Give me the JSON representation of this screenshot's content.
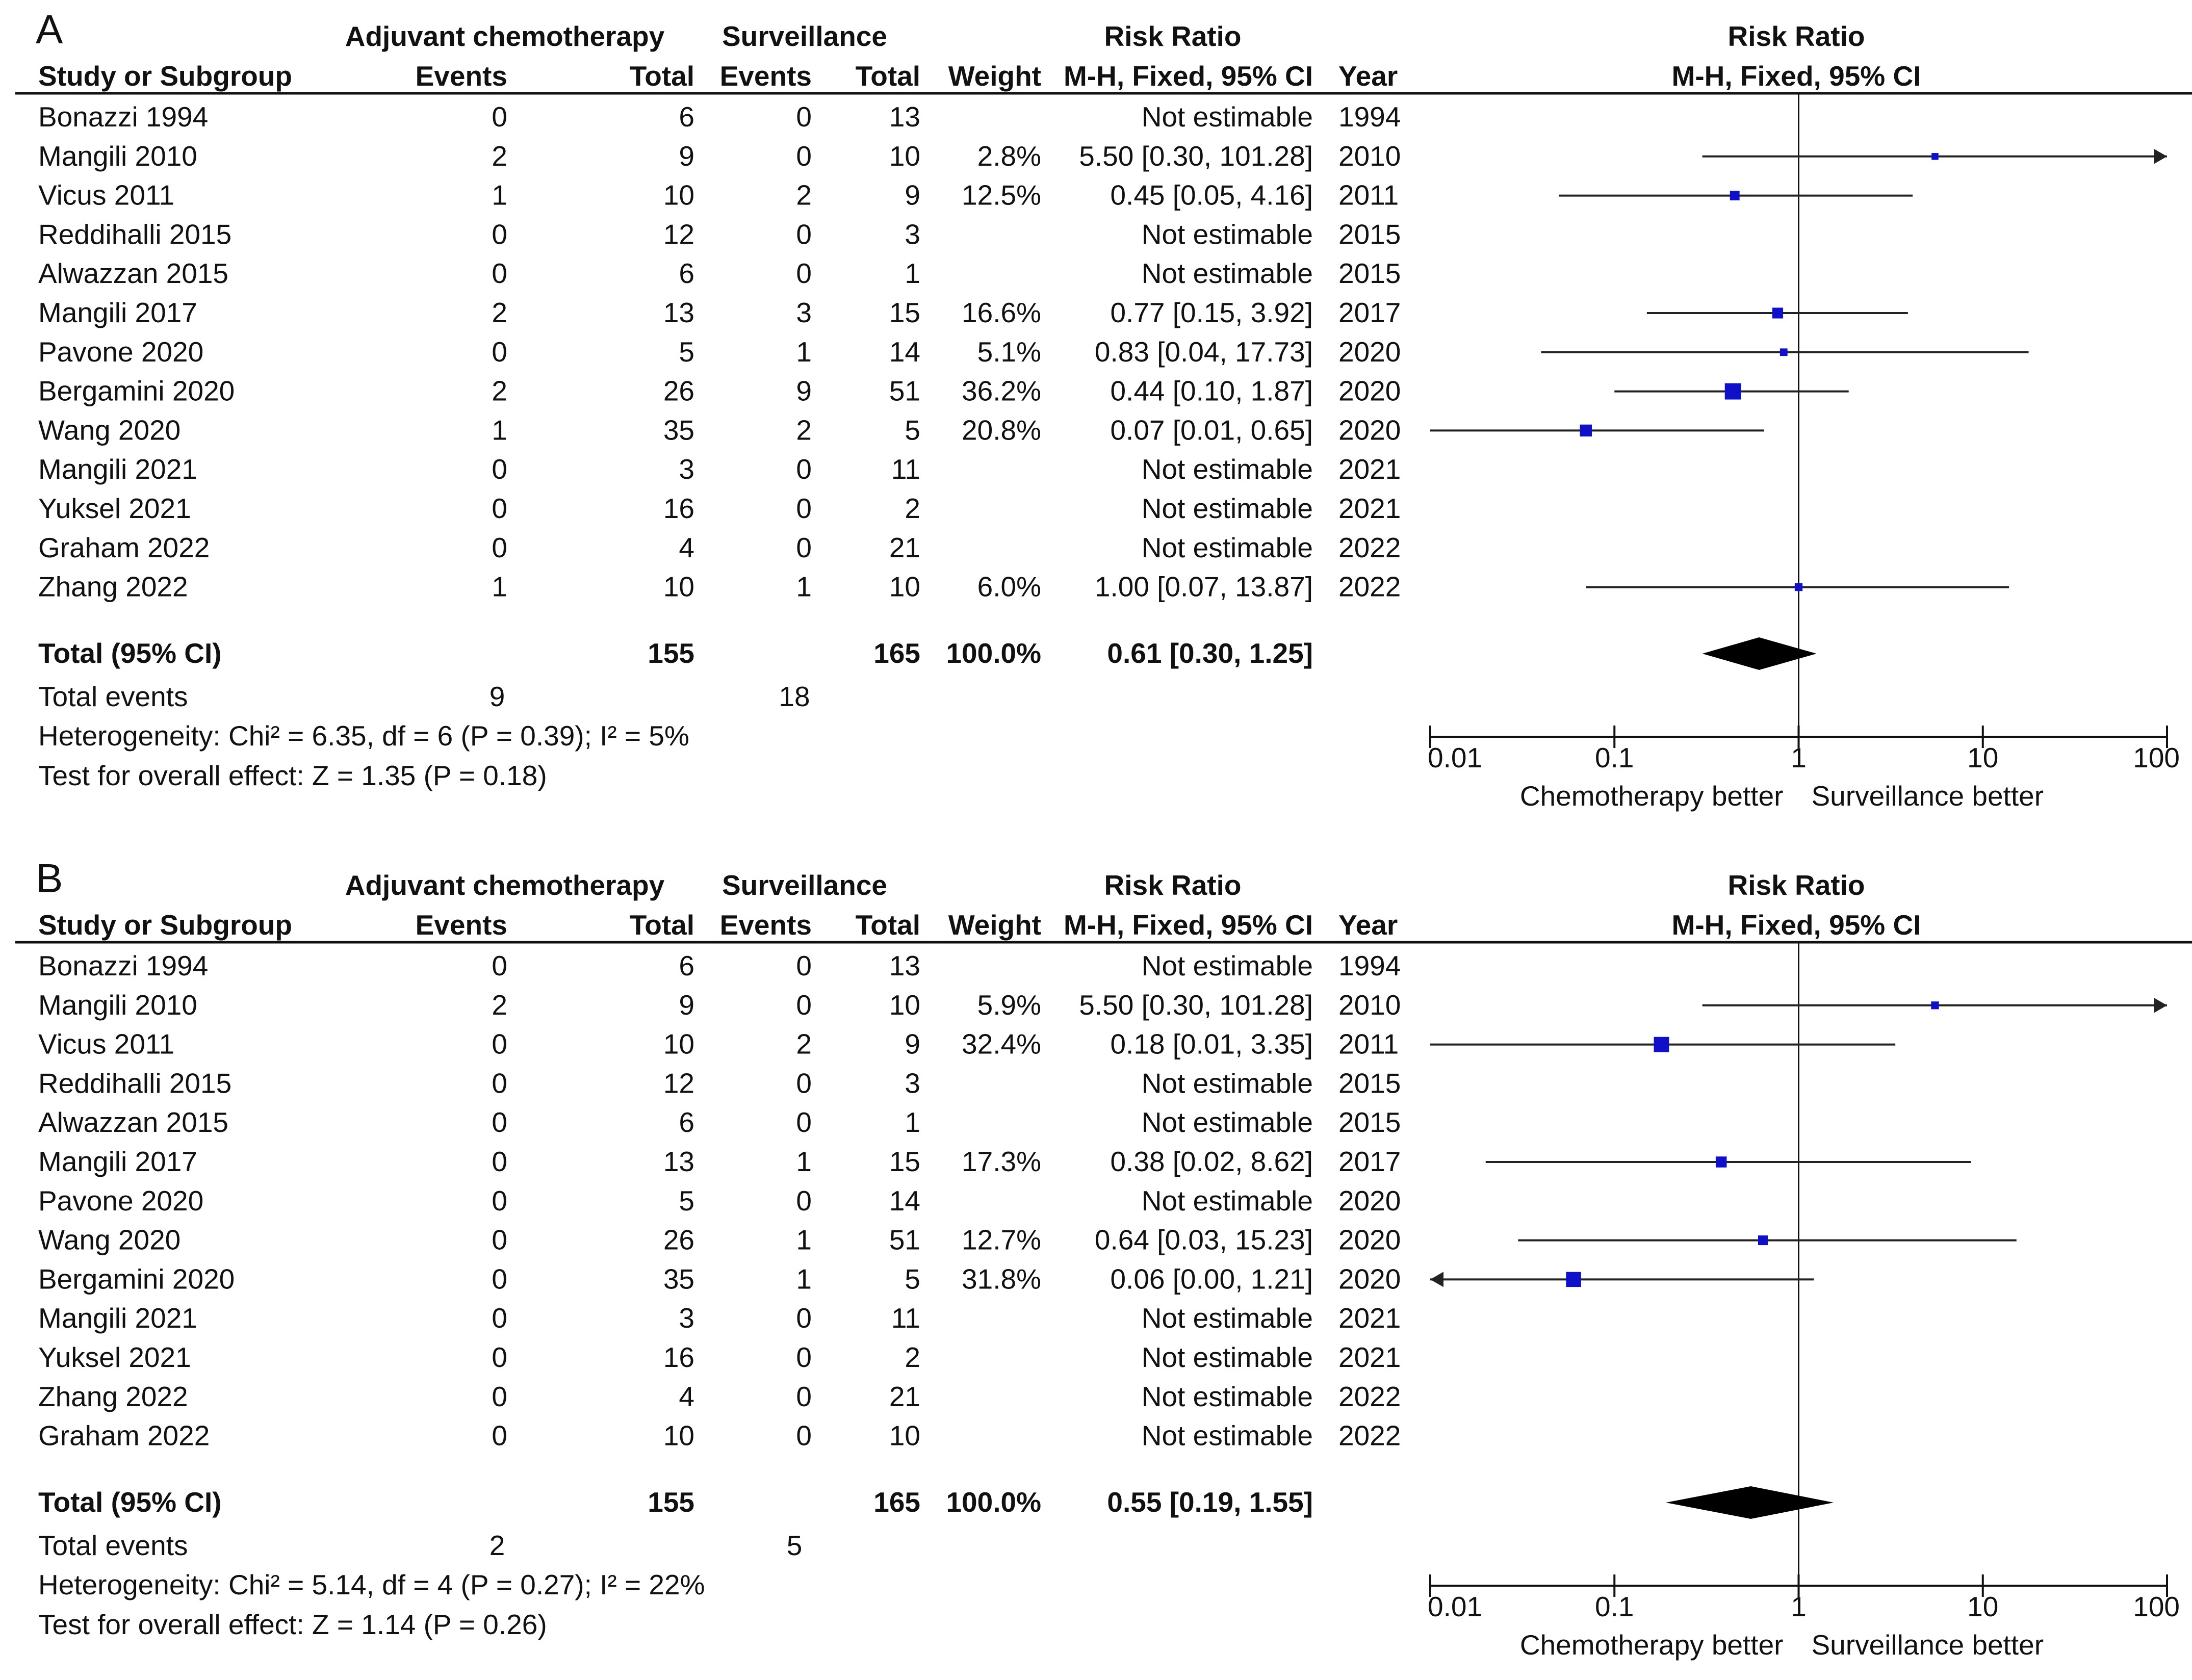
{
  "header_labels": {
    "experimental": "Adjuvant chemotherapy",
    "control": "Surveillance",
    "effect": "Risk Ratio",
    "study": "Study or Subgroup",
    "events": "Events",
    "total": "Total",
    "weight": "Weight",
    "method": "M-H, Fixed, 95% CI",
    "year": "Year",
    "plot_title": "Risk Ratio",
    "plot_method": "M-H, Fixed, 95% CI"
  },
  "colors": {
    "marker": "#1010c8",
    "line": "#222222",
    "diamond": "#000000"
  },
  "chart_data": [
    {
      "type": "forest",
      "panel_label": "A",
      "x_scale": "log",
      "xlim": [
        0.01,
        100
      ],
      "xticks": [
        "0.01",
        "0.1",
        "1",
        "10",
        "100"
      ],
      "xtick_values": [
        0.01,
        0.1,
        1,
        10,
        100
      ],
      "favours_left": "Chemotherapy better",
      "favours_right": "Surveillance better",
      "studies": [
        {
          "name": "Bonazzi 1994",
          "e_events": "0",
          "e_total": "6",
          "c_events": "0",
          "c_total": "13",
          "weight": "",
          "ci_text": "Not estimable",
          "year": "1994"
        },
        {
          "name": "Mangili 2010",
          "e_events": "2",
          "e_total": "9",
          "c_events": "0",
          "c_total": "10",
          "weight": "2.8%",
          "ci_text": "5.50 [0.30, 101.28]",
          "year": "2010",
          "rr": 5.5,
          "low": 0.3,
          "high": 101.28
        },
        {
          "name": "Vicus 2011",
          "e_events": "1",
          "e_total": "10",
          "c_events": "2",
          "c_total": "9",
          "weight": "12.5%",
          "ci_text": "0.45 [0.05, 4.16]",
          "year": "2011",
          "rr": 0.45,
          "low": 0.05,
          "high": 4.16
        },
        {
          "name": "Reddihalli 2015",
          "e_events": "0",
          "e_total": "12",
          "c_events": "0",
          "c_total": "3",
          "weight": "",
          "ci_text": "Not estimable",
          "year": "2015"
        },
        {
          "name": "Alwazzan 2015",
          "e_events": "0",
          "e_total": "6",
          "c_events": "0",
          "c_total": "1",
          "weight": "",
          "ci_text": "Not estimable",
          "year": "2015"
        },
        {
          "name": "Mangili 2017",
          "e_events": "2",
          "e_total": "13",
          "c_events": "3",
          "c_total": "15",
          "weight": "16.6%",
          "ci_text": "0.77 [0.15, 3.92]",
          "year": "2017",
          "rr": 0.77,
          "low": 0.15,
          "high": 3.92
        },
        {
          "name": "Pavone 2020",
          "e_events": "0",
          "e_total": "5",
          "c_events": "1",
          "c_total": "14",
          "weight": "5.1%",
          "ci_text": "0.83 [0.04, 17.73]",
          "year": "2020",
          "rr": 0.83,
          "low": 0.04,
          "high": 17.73
        },
        {
          "name": "Bergamini 2020",
          "e_events": "2",
          "e_total": "26",
          "c_events": "9",
          "c_total": "51",
          "weight": "36.2%",
          "ci_text": "0.44 [0.10, 1.87]",
          "year": "2020",
          "rr": 0.44,
          "low": 0.1,
          "high": 1.87
        },
        {
          "name": "Wang 2020",
          "e_events": "1",
          "e_total": "35",
          "c_events": "2",
          "c_total": "5",
          "weight": "20.8%",
          "ci_text": "0.07 [0.01, 0.65]",
          "year": "2020",
          "rr": 0.07,
          "low": 0.01,
          "high": 0.65
        },
        {
          "name": "Mangili 2021",
          "e_events": "0",
          "e_total": "3",
          "c_events": "0",
          "c_total": "11",
          "weight": "",
          "ci_text": "Not estimable",
          "year": "2021"
        },
        {
          "name": "Yuksel 2021",
          "e_events": "0",
          "e_total": "16",
          "c_events": "0",
          "c_total": "2",
          "weight": "",
          "ci_text": "Not estimable",
          "year": "2021"
        },
        {
          "name": "Graham 2022",
          "e_events": "0",
          "e_total": "4",
          "c_events": "0",
          "c_total": "21",
          "weight": "",
          "ci_text": "Not estimable",
          "year": "2022"
        },
        {
          "name": "Zhang 2022",
          "e_events": "1",
          "e_total": "10",
          "c_events": "1",
          "c_total": "10",
          "weight": "6.0%",
          "ci_text": "1.00 [0.07, 13.87]",
          "year": "2022",
          "rr": 1.0,
          "low": 0.07,
          "high": 13.87
        }
      ],
      "total": {
        "label": "Total (95% CI)",
        "e_total": "155",
        "c_total": "165",
        "weight": "100.0%",
        "ci_text": "0.61 [0.30, 1.25]",
        "rr": 0.61,
        "low": 0.3,
        "high": 1.25
      },
      "total_events": {
        "label": "Total events",
        "e": "9",
        "c": "18"
      },
      "heterogeneity": "Heterogeneity: Chi² = 6.35, df = 6 (P = 0.39); I² = 5%",
      "overall_effect": "Test for overall effect: Z = 1.35 (P = 0.18)"
    },
    {
      "type": "forest",
      "panel_label": "B",
      "x_scale": "log",
      "xlim": [
        0.01,
        100
      ],
      "xticks": [
        "0.01",
        "0.1",
        "1",
        "10",
        "100"
      ],
      "xtick_values": [
        0.01,
        0.1,
        1,
        10,
        100
      ],
      "favours_left": "Chemotherapy better",
      "favours_right": "Surveillance better",
      "studies": [
        {
          "name": "Bonazzi 1994",
          "e_events": "0",
          "e_total": "6",
          "c_events": "0",
          "c_total": "13",
          "weight": "",
          "ci_text": "Not estimable",
          "year": "1994"
        },
        {
          "name": "Mangili 2010",
          "e_events": "2",
          "e_total": "9",
          "c_events": "0",
          "c_total": "10",
          "weight": "5.9%",
          "ci_text": "5.50 [0.30, 101.28]",
          "year": "2010",
          "rr": 5.5,
          "low": 0.3,
          "high": 101.28
        },
        {
          "name": "Vicus 2011",
          "e_events": "0",
          "e_total": "10",
          "c_events": "2",
          "c_total": "9",
          "weight": "32.4%",
          "ci_text": "0.18 [0.01, 3.35]",
          "year": "2011",
          "rr": 0.18,
          "low": 0.01,
          "high": 3.35
        },
        {
          "name": "Reddihalli 2015",
          "e_events": "0",
          "e_total": "12",
          "c_events": "0",
          "c_total": "3",
          "weight": "",
          "ci_text": "Not estimable",
          "year": "2015"
        },
        {
          "name": "Alwazzan 2015",
          "e_events": "0",
          "e_total": "6",
          "c_events": "0",
          "c_total": "1",
          "weight": "",
          "ci_text": "Not estimable",
          "year": "2015"
        },
        {
          "name": "Mangili 2017",
          "e_events": "0",
          "e_total": "13",
          "c_events": "1",
          "c_total": "15",
          "weight": "17.3%",
          "ci_text": "0.38 [0.02, 8.62]",
          "year": "2017",
          "rr": 0.38,
          "low": 0.02,
          "high": 8.62
        },
        {
          "name": "Pavone 2020",
          "e_events": "0",
          "e_total": "5",
          "c_events": "0",
          "c_total": "14",
          "weight": "",
          "ci_text": "Not estimable",
          "year": "2020"
        },
        {
          "name": "Wang 2020",
          "e_events": "0",
          "e_total": "26",
          "c_events": "1",
          "c_total": "51",
          "weight": "12.7%",
          "ci_text": "0.64 [0.03, 15.23]",
          "year": "2020",
          "rr": 0.64,
          "low": 0.03,
          "high": 15.23
        },
        {
          "name": "Bergamini 2020",
          "e_events": "0",
          "e_total": "35",
          "c_events": "1",
          "c_total": "5",
          "weight": "31.8%",
          "ci_text": "0.06 [0.00, 1.21]",
          "year": "2020",
          "rr": 0.06,
          "low": 0.0,
          "high": 1.21
        },
        {
          "name": "Mangili 2021",
          "e_events": "0",
          "e_total": "3",
          "c_events": "0",
          "c_total": "11",
          "weight": "",
          "ci_text": "Not estimable",
          "year": "2021"
        },
        {
          "name": "Yuksel 2021",
          "e_events": "0",
          "e_total": "16",
          "c_events": "0",
          "c_total": "2",
          "weight": "",
          "ci_text": "Not estimable",
          "year": "2021"
        },
        {
          "name": "Zhang 2022",
          "e_events": "0",
          "e_total": "4",
          "c_events": "0",
          "c_total": "21",
          "weight": "",
          "ci_text": "Not estimable",
          "year": "2022"
        },
        {
          "name": "Graham 2022",
          "e_events": "0",
          "e_total": "10",
          "c_events": "0",
          "c_total": "10",
          "weight": "",
          "ci_text": "Not estimable",
          "year": "2022"
        }
      ],
      "total": {
        "label": "Total (95% CI)",
        "e_total": "155",
        "c_total": "165",
        "weight": "100.0%",
        "ci_text": "0.55 [0.19, 1.55]",
        "rr": 0.55,
        "low": 0.19,
        "high": 1.55
      },
      "total_events": {
        "label": "Total events",
        "e": "2",
        "c": "5"
      },
      "heterogeneity": "Heterogeneity: Chi² = 5.14, df = 4 (P = 0.27); I² = 22%",
      "overall_effect": "Test for overall effect: Z = 1.14 (P = 0.26)"
    }
  ]
}
